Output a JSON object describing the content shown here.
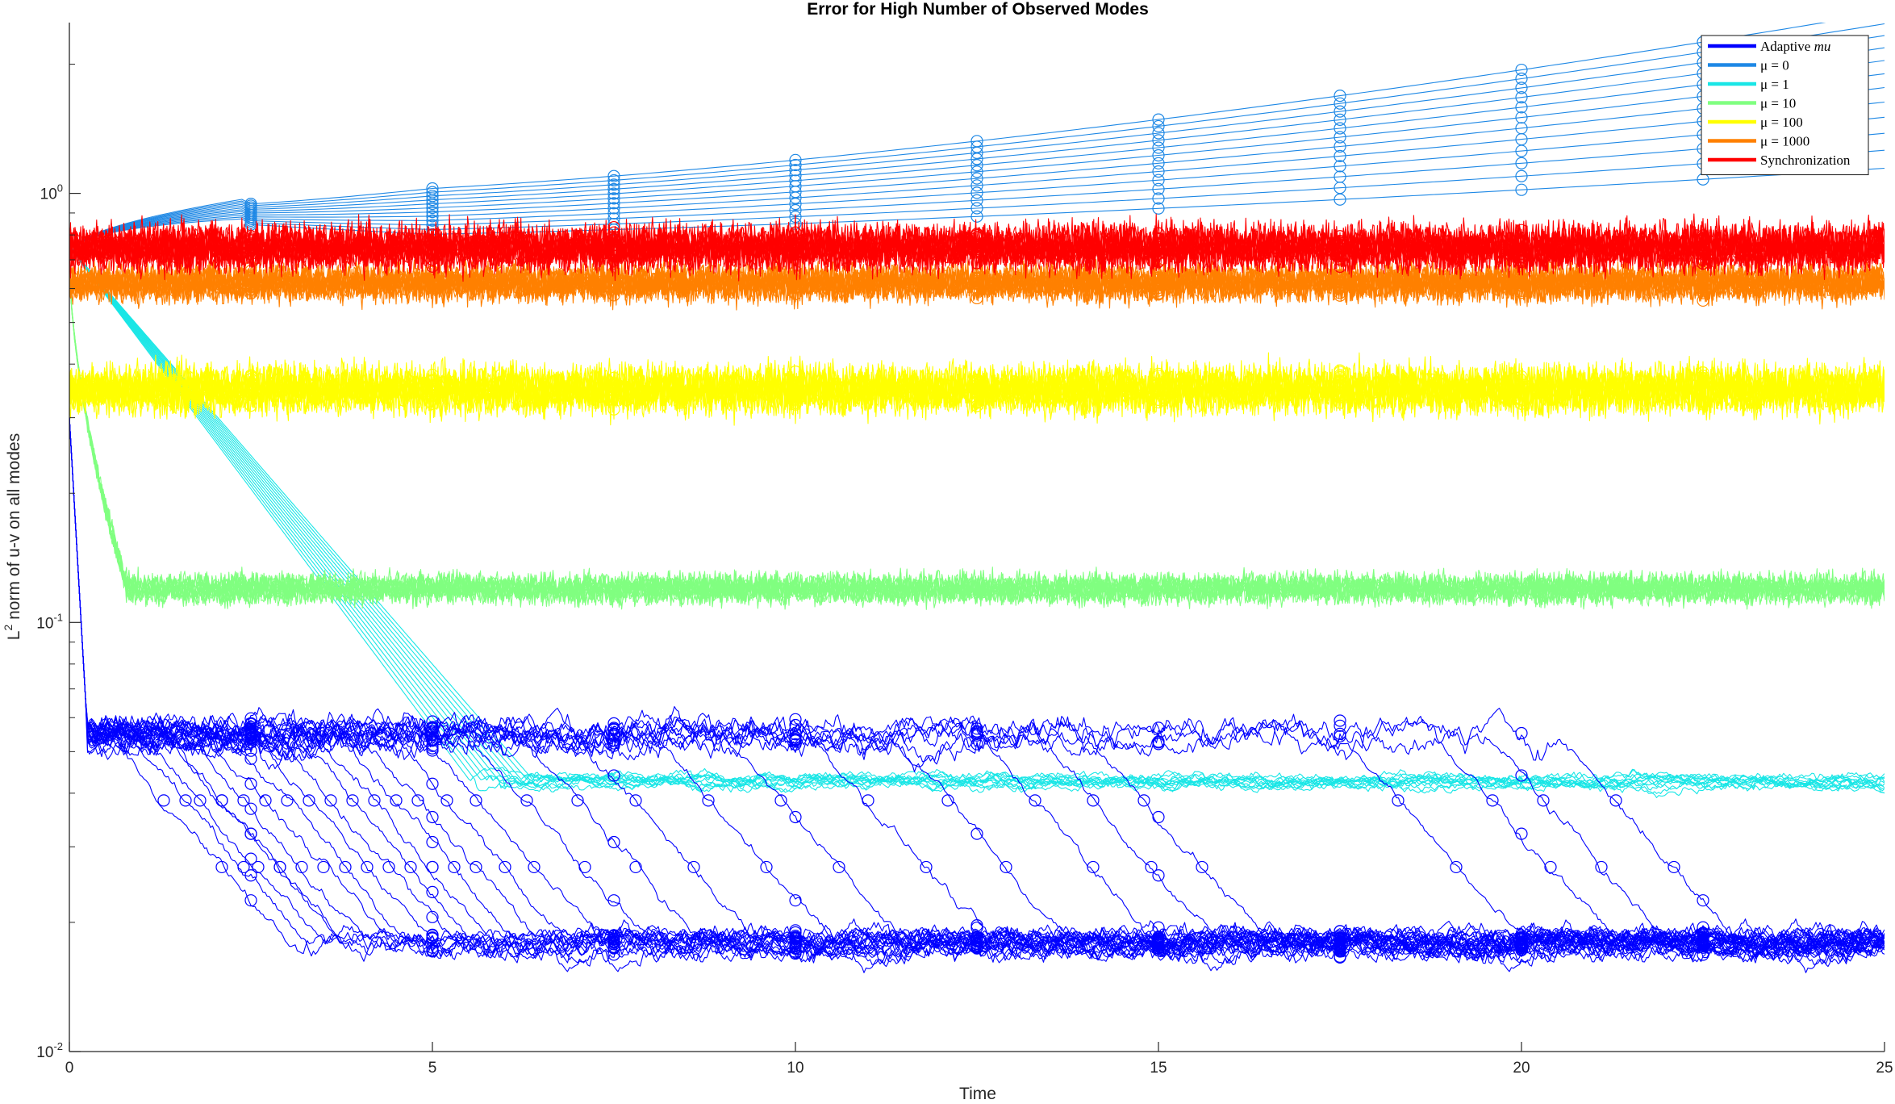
{
  "chart_data": {
    "type": "line",
    "title": "Error for High Number of Observed Modes",
    "xlabel": "Time",
    "ylabel_main": "L",
    "ylabel_sup": "2",
    "ylabel_rest": " norm of u-v on all modes",
    "xlim": [
      0,
      25
    ],
    "ylim": [
      0.01,
      2.5
    ],
    "yscale": "log",
    "x_ticks": [
      0,
      5,
      10,
      15,
      20,
      25
    ],
    "x_tick_labels": [
      "0",
      "5",
      "10",
      "15",
      "20",
      "25"
    ],
    "y_ticks": [
      {
        "value": 0.01,
        "base": "10",
        "exp": "-2"
      },
      {
        "value": 0.1,
        "base": "10",
        "exp": "-1"
      },
      {
        "value": 1,
        "base": "10",
        "exp": "0"
      }
    ],
    "grid": false,
    "legend_position": "top-right",
    "legend": [
      {
        "label": "Adaptive ",
        "label_italic": "mu",
        "color": "#0000ff"
      },
      {
        "label": "μ = 0",
        "color": "#1e88e5"
      },
      {
        "label": "μ = 1",
        "color": "#19e6e6"
      },
      {
        "label": "μ = 10",
        "color": "#80ff80"
      },
      {
        "label": "μ = 100",
        "color": "#ffff00"
      },
      {
        "label": "μ = 1000",
        "color": "#ff8000"
      },
      {
        "label": "Synchronization",
        "color": "#ff0000"
      }
    ],
    "series": [
      {
        "name": "μ = 0",
        "color": "#1e88e5",
        "start": 0.72,
        "values_at_t": {
          "0": 0.72,
          "2.5": 0.93,
          "5": 0.97,
          "10": 1.05,
          "15": 1.2,
          "20": 1.4,
          "25": 1.7
        },
        "spread_range_at_25": [
          1.3,
          2.4
        ],
        "runs": 12
      },
      {
        "name": "μ = 1",
        "color": "#19e6e6",
        "start": 0.75,
        "plateau": 0.042,
        "plateau_range": [
          0.038,
          0.048
        ],
        "reach_time": 6,
        "runs": 12
      },
      {
        "name": "μ = 10",
        "color": "#80ff80",
        "start": 0.7,
        "plateau": 0.12,
        "plateau_range": [
          0.105,
          0.15
        ],
        "reach_time": 0.8,
        "runs": 12
      },
      {
        "name": "μ = 100",
        "color": "#ffff00",
        "plateau": 0.35,
        "plateau_range": [
          0.28,
          0.45
        ],
        "runs": 12
      },
      {
        "name": "μ = 1000",
        "color": "#ff8000",
        "plateau": 0.62,
        "plateau_range": [
          0.52,
          0.75
        ],
        "runs": 12
      },
      {
        "name": "Synchronization",
        "color": "#ff0000",
        "plateau": 0.75,
        "plateau_range": [
          0.6,
          0.95
        ],
        "runs": 12
      },
      {
        "name": "Adaptive mu",
        "color": "#0000ff",
        "start": 0.3,
        "first_plateau": 0.055,
        "first_plateau_range": [
          0.05,
          0.07
        ],
        "final_plateau": 0.018,
        "final_plateau_range": [
          0.016,
          0.021
        ],
        "switch_times": [
          0.5,
          1.0,
          1.3,
          1.6,
          1.9,
          2.2,
          2.5,
          2.8,
          3.1,
          3.4,
          3.7,
          4.0,
          4.4,
          4.8,
          5.5,
          6.2,
          7.0,
          8.0,
          9.0,
          10.2,
          11.3,
          12.5,
          13.3,
          14.0,
          17.5,
          18.8,
          19.5,
          20.5
        ],
        "runs": 30
      }
    ]
  }
}
